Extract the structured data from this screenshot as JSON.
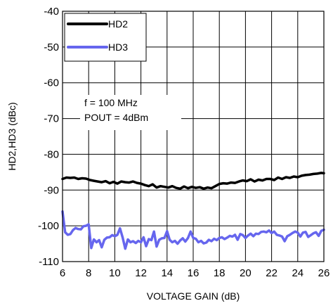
{
  "chart_data": {
    "type": "line",
    "xlabel": "VOLTAGE GAIN (dB)",
    "ylabel": "HD2,HD3 (dBc)",
    "xlim": [
      6,
      26
    ],
    "ylim": [
      -110,
      -40
    ],
    "xticks": [
      "6",
      "8",
      "10",
      "12",
      "14",
      "16",
      "18",
      "20",
      "22",
      "24",
      "26"
    ],
    "yticks": [
      "-40",
      "-50",
      "-60",
      "-70",
      "-80",
      "-90",
      "-100",
      "-110"
    ],
    "grid": true,
    "legend_position": "top-left",
    "annotations": [
      "f = 100 MHz",
      "POUT = 4dBm"
    ],
    "series": [
      {
        "name": "HD2",
        "color": "#000000",
        "points": [
          [
            6.0,
            -86.9
          ],
          [
            6.3,
            -86.5
          ],
          [
            6.6,
            -86.6
          ],
          [
            6.9,
            -86.5
          ],
          [
            7.2,
            -86.9
          ],
          [
            7.5,
            -86.7
          ],
          [
            7.8,
            -86.8
          ],
          [
            8.1,
            -87.2
          ],
          [
            8.4,
            -87.4
          ],
          [
            8.7,
            -87.6
          ],
          [
            9.0,
            -87.8
          ],
          [
            9.3,
            -87.5
          ],
          [
            9.6,
            -88.1
          ],
          [
            9.9,
            -87.7
          ],
          [
            10.2,
            -88.2
          ],
          [
            10.5,
            -87.6
          ],
          [
            10.8,
            -87.8
          ],
          [
            11.1,
            -87.9
          ],
          [
            11.4,
            -87.6
          ],
          [
            11.7,
            -88.0
          ],
          [
            12.0,
            -88.2
          ],
          [
            12.3,
            -88.6
          ],
          [
            12.6,
            -88.9
          ],
          [
            12.9,
            -88.4
          ],
          [
            13.2,
            -89.3
          ],
          [
            13.5,
            -88.9
          ],
          [
            13.8,
            -89.1
          ],
          [
            14.1,
            -89.3
          ],
          [
            14.4,
            -88.9
          ],
          [
            14.7,
            -89.4
          ],
          [
            15.0,
            -89.6
          ],
          [
            15.3,
            -89.0
          ],
          [
            15.6,
            -89.5
          ],
          [
            15.9,
            -89.1
          ],
          [
            16.2,
            -89.4
          ],
          [
            16.5,
            -89.2
          ],
          [
            16.8,
            -89.6
          ],
          [
            17.1,
            -89.3
          ],
          [
            17.4,
            -89.5
          ],
          [
            17.7,
            -88.9
          ],
          [
            18.0,
            -88.3
          ],
          [
            18.3,
            -88.1
          ],
          [
            18.6,
            -88.2
          ],
          [
            18.9,
            -87.9
          ],
          [
            19.2,
            -88.0
          ],
          [
            19.5,
            -87.6
          ],
          [
            19.8,
            -87.3
          ],
          [
            20.1,
            -87.5
          ],
          [
            20.4,
            -87.0
          ],
          [
            20.7,
            -87.6
          ],
          [
            21.0,
            -87.1
          ],
          [
            21.3,
            -87.3
          ],
          [
            21.6,
            -86.9
          ],
          [
            21.9,
            -86.9
          ],
          [
            22.2,
            -87.2
          ],
          [
            22.5,
            -86.5
          ],
          [
            22.8,
            -86.9
          ],
          [
            23.1,
            -86.4
          ],
          [
            23.4,
            -86.6
          ],
          [
            23.7,
            -86.2
          ],
          [
            24.0,
            -86.4
          ],
          [
            24.3,
            -86.0
          ],
          [
            24.6,
            -85.8
          ],
          [
            24.9,
            -85.7
          ],
          [
            25.2,
            -85.5
          ],
          [
            25.5,
            -85.4
          ],
          [
            25.8,
            -85.2
          ],
          [
            26.0,
            -85.3
          ]
        ]
      },
      {
        "name": "HD3",
        "color": "#6666ee",
        "points": [
          [
            6.0,
            -96.0
          ],
          [
            6.2,
            -101.8
          ],
          [
            6.4,
            -102.5
          ],
          [
            6.6,
            -102.3
          ],
          [
            6.8,
            -101.2
          ],
          [
            7.0,
            -100.6
          ],
          [
            7.2,
            -100.9
          ],
          [
            7.4,
            -101.0
          ],
          [
            7.6,
            -100.1
          ],
          [
            7.8,
            -100.0
          ],
          [
            8.0,
            -99.6
          ],
          [
            8.2,
            -106.2
          ],
          [
            8.4,
            -103.8
          ],
          [
            8.6,
            -104.6
          ],
          [
            8.8,
            -104.0
          ],
          [
            9.0,
            -106.0
          ],
          [
            9.2,
            -103.9
          ],
          [
            9.4,
            -103.3
          ],
          [
            9.6,
            -103.2
          ],
          [
            9.8,
            -102.6
          ],
          [
            10.0,
            -102.9
          ],
          [
            10.2,
            -102.5
          ],
          [
            10.4,
            -100.7
          ],
          [
            10.6,
            -103.3
          ],
          [
            10.8,
            -106.4
          ],
          [
            11.0,
            -103.8
          ],
          [
            11.2,
            -104.6
          ],
          [
            11.4,
            -104.3
          ],
          [
            11.6,
            -104.8
          ],
          [
            11.8,
            -104.2
          ],
          [
            12.0,
            -104.6
          ],
          [
            12.2,
            -103.2
          ],
          [
            12.4,
            -105.7
          ],
          [
            12.6,
            -103.7
          ],
          [
            12.8,
            -104.0
          ],
          [
            13.0,
            -101.6
          ],
          [
            13.2,
            -105.8
          ],
          [
            13.4,
            -103.9
          ],
          [
            13.6,
            -103.5
          ],
          [
            13.8,
            -103.4
          ],
          [
            14.0,
            -101.5
          ],
          [
            14.2,
            -103.9
          ],
          [
            14.4,
            -104.6
          ],
          [
            14.6,
            -104.2
          ],
          [
            14.8,
            -105.0
          ],
          [
            15.0,
            -104.1
          ],
          [
            15.2,
            -103.5
          ],
          [
            15.4,
            -104.4
          ],
          [
            15.6,
            -103.4
          ],
          [
            15.8,
            -101.6
          ],
          [
            16.0,
            -103.4
          ],
          [
            16.2,
            -103.6
          ],
          [
            16.4,
            -104.6
          ],
          [
            16.6,
            -104.2
          ],
          [
            16.8,
            -104.9
          ],
          [
            17.0,
            -104.7
          ],
          [
            17.2,
            -103.9
          ],
          [
            17.4,
            -104.3
          ],
          [
            17.6,
            -103.6
          ],
          [
            17.8,
            -104.0
          ],
          [
            18.0,
            -103.4
          ],
          [
            18.2,
            -103.2
          ],
          [
            18.4,
            -103.7
          ],
          [
            18.6,
            -103.3
          ],
          [
            18.8,
            -102.8
          ],
          [
            19.0,
            -103.0
          ],
          [
            19.2,
            -102.5
          ],
          [
            19.4,
            -103.9
          ],
          [
            19.6,
            -102.3
          ],
          [
            19.8,
            -102.6
          ],
          [
            20.0,
            -103.4
          ],
          [
            20.2,
            -102.7
          ],
          [
            20.4,
            -102.2
          ],
          [
            20.6,
            -102.9
          ],
          [
            20.8,
            -102.2
          ],
          [
            21.0,
            -102.3
          ],
          [
            21.2,
            -101.7
          ],
          [
            21.4,
            -101.6
          ],
          [
            21.6,
            -101.8
          ],
          [
            21.8,
            -101.3
          ],
          [
            22.0,
            -102.0
          ],
          [
            22.2,
            -101.6
          ],
          [
            22.4,
            -102.5
          ],
          [
            22.6,
            -102.7
          ],
          [
            22.8,
            -103.0
          ],
          [
            23.0,
            -104.3
          ],
          [
            23.2,
            -102.9
          ],
          [
            23.4,
            -102.5
          ],
          [
            23.6,
            -102.0
          ],
          [
            23.8,
            -101.6
          ],
          [
            24.0,
            -101.9
          ],
          [
            24.2,
            -103.0
          ],
          [
            24.4,
            -101.9
          ],
          [
            24.6,
            -101.7
          ],
          [
            24.8,
            -103.1
          ],
          [
            25.0,
            -102.6
          ],
          [
            25.2,
            -102.1
          ],
          [
            25.4,
            -101.8
          ],
          [
            25.6,
            -102.8
          ],
          [
            25.8,
            -101.4
          ],
          [
            26.0,
            -101.1
          ]
        ]
      }
    ]
  }
}
